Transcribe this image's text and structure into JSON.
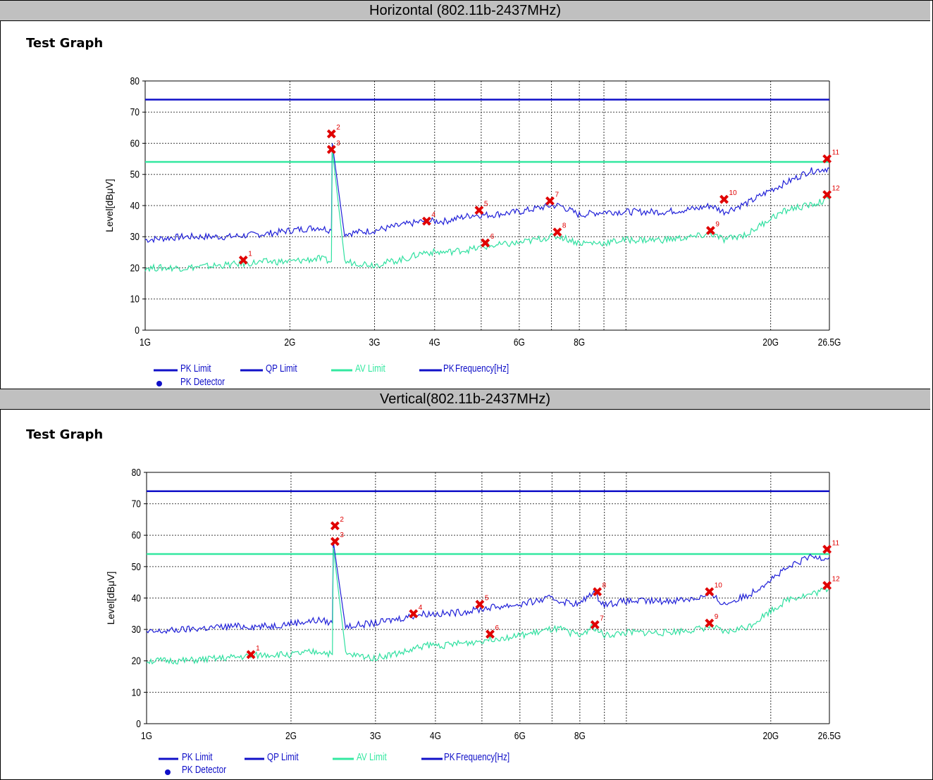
{
  "sections": [
    {
      "header": "Horizontal (802.11b-2437MHz)",
      "test_graph_label": "Test Graph"
    },
    {
      "header": "Vertical(802.11b-2437MHz)",
      "test_graph_label": "Test Graph"
    }
  ],
  "legend": {
    "pk_limit": "PK Limit",
    "qp_limit": "QP Limit",
    "av_limit": "AV Limit",
    "pk_partial": "PK",
    "frequency_label": "Frequency[Hz]",
    "pk_detector": "PK Detector"
  },
  "colors": {
    "pk_limit": "#1010c8",
    "av_limit": "#33e8a0",
    "pk_trace": "#2020d8",
    "av_trace": "#30e0a0",
    "marker": "#e00000",
    "grid": "#000000",
    "header_bg": "#c0c0c0"
  },
  "chart_data": [
    {
      "type": "line",
      "title": "Horizontal (802.11b-2437MHz)",
      "xlabel": "Frequency[Hz]",
      "ylabel": "Level[dBμV]",
      "x_scale": "log",
      "xlim": [
        1,
        26.5
      ],
      "ylim": [
        0,
        80
      ],
      "yticks": [
        0,
        10,
        20,
        30,
        40,
        50,
        60,
        70,
        80
      ],
      "xticks": [
        {
          "v": 1,
          "label": "1G"
        },
        {
          "v": 2,
          "label": "2G"
        },
        {
          "v": 3,
          "label": "3G"
        },
        {
          "v": 4,
          "label": "4G"
        },
        {
          "v": 6,
          "label": "6G"
        },
        {
          "v": 8,
          "label": "8G"
        },
        {
          "v": 20,
          "label": "20G"
        },
        {
          "v": 26.5,
          "label": "26.5G"
        }
      ],
      "grid_x": [
        2,
        3,
        4,
        5,
        6,
        7,
        8,
        9,
        10,
        20
      ],
      "limits": [
        {
          "name": "PK Limit",
          "value": 74
        },
        {
          "name": "AV Limit",
          "value": 54
        }
      ],
      "series": [
        {
          "name": "PK",
          "x": [
            1,
            1.2,
            1.5,
            1.8,
            2.0,
            2.3,
            2.44,
            2.45,
            2.6,
            3.0,
            3.5,
            3.8,
            4.2,
            4.8,
            5.2,
            6.0,
            7.0,
            7.3,
            8.0,
            9.0,
            10.0,
            12.0,
            14.0,
            15.0,
            16.0,
            18.0,
            20.0,
            22.0,
            24.0,
            26.5
          ],
          "y": [
            29,
            30,
            30,
            31,
            32,
            33,
            32,
            60,
            31,
            32,
            34,
            35,
            35,
            37,
            37,
            38,
            40,
            40,
            37,
            38,
            38,
            38,
            39,
            40,
            38,
            41,
            45,
            48,
            51,
            52
          ]
        },
        {
          "name": "AV",
          "x": [
            1,
            1.2,
            1.5,
            1.8,
            2.0,
            2.3,
            2.44,
            2.45,
            2.6,
            3.0,
            3.5,
            3.8,
            4.2,
            4.8,
            5.2,
            6.0,
            7.0,
            7.3,
            8.0,
            9.0,
            10.0,
            12.0,
            14.0,
            15.0,
            16.0,
            18.0,
            20.0,
            22.0,
            24.0,
            26.5
          ],
          "y": [
            20,
            20,
            21,
            22,
            22,
            23,
            22,
            58,
            22,
            21,
            23,
            25,
            25,
            26,
            27,
            28,
            30,
            30,
            28,
            28,
            29,
            29,
            30,
            31,
            29,
            31,
            36,
            39,
            40,
            42
          ]
        }
      ],
      "markers": [
        {
          "id": "1",
          "x": 1.6,
          "y": 22.5
        },
        {
          "id": "2",
          "x": 2.44,
          "y": 63
        },
        {
          "id": "3",
          "x": 2.44,
          "y": 58
        },
        {
          "id": "4",
          "x": 3.85,
          "y": 35
        },
        {
          "id": "5",
          "x": 4.95,
          "y": 38.5
        },
        {
          "id": "6",
          "x": 5.1,
          "y": 28
        },
        {
          "id": "7",
          "x": 6.95,
          "y": 41.5
        },
        {
          "id": "8",
          "x": 7.2,
          "y": 31.5
        },
        {
          "id": "9",
          "x": 15.0,
          "y": 32
        },
        {
          "id": "10",
          "x": 16.0,
          "y": 42
        },
        {
          "id": "11",
          "x": 26.2,
          "y": 55
        },
        {
          "id": "12",
          "x": 26.2,
          "y": 43.5
        }
      ]
    },
    {
      "type": "line",
      "title": "Vertical(802.11b-2437MHz)",
      "xlabel": "Frequency[Hz]",
      "ylabel": "Level[dBμV]",
      "x_scale": "log",
      "xlim": [
        1,
        26.5
      ],
      "ylim": [
        0,
        80
      ],
      "yticks": [
        0,
        10,
        20,
        30,
        40,
        50,
        60,
        70,
        80
      ],
      "xticks": [
        {
          "v": 1,
          "label": "1G"
        },
        {
          "v": 2,
          "label": "2G"
        },
        {
          "v": 3,
          "label": "3G"
        },
        {
          "v": 4,
          "label": "4G"
        },
        {
          "v": 6,
          "label": "6G"
        },
        {
          "v": 8,
          "label": "8G"
        },
        {
          "v": 20,
          "label": "20G"
        },
        {
          "v": 26.5,
          "label": "26.5G"
        }
      ],
      "grid_x": [
        2,
        3,
        4,
        5,
        6,
        7,
        8,
        9,
        10,
        20
      ],
      "limits": [
        {
          "name": "PK Limit",
          "value": 74
        },
        {
          "name": "AV Limit",
          "value": 54
        }
      ],
      "series": [
        {
          "name": "PK",
          "x": [
            1,
            1.2,
            1.5,
            1.8,
            2.0,
            2.3,
            2.44,
            2.45,
            2.6,
            3.0,
            3.5,
            3.8,
            4.2,
            4.8,
            5.2,
            6.0,
            7.0,
            7.3,
            8.0,
            8.5,
            9.0,
            10.0,
            12.0,
            14.0,
            15.0,
            16.0,
            18.0,
            20.0,
            22.0,
            24.0,
            26.5
          ],
          "y": [
            29,
            30,
            31,
            31,
            32,
            33,
            32,
            58,
            31,
            32,
            34,
            35,
            35,
            36,
            37,
            38,
            40,
            39,
            38,
            42,
            38,
            39,
            39,
            40,
            41,
            38,
            41,
            46,
            50,
            53,
            53
          ]
        },
        {
          "name": "AV",
          "x": [
            1,
            1.2,
            1.5,
            1.8,
            2.0,
            2.3,
            2.44,
            2.45,
            2.6,
            3.0,
            3.5,
            3.8,
            4.2,
            4.8,
            5.2,
            6.0,
            7.0,
            7.3,
            8.0,
            8.5,
            9.0,
            10.0,
            12.0,
            14.0,
            15.0,
            16.0,
            18.0,
            20.0,
            22.0,
            24.0,
            26.5
          ],
          "y": [
            20,
            20,
            21,
            22,
            22,
            23,
            22,
            56,
            22,
            21,
            23,
            25,
            25,
            26,
            27,
            28,
            30,
            30,
            28,
            31,
            28,
            29,
            29,
            30,
            31,
            29,
            31,
            36,
            40,
            41,
            43
          ]
        }
      ],
      "markers": [
        {
          "id": "1",
          "x": 1.65,
          "y": 22
        },
        {
          "id": "2",
          "x": 2.47,
          "y": 63
        },
        {
          "id": "3",
          "x": 2.47,
          "y": 58
        },
        {
          "id": "4",
          "x": 3.6,
          "y": 35
        },
        {
          "id": "5",
          "x": 4.95,
          "y": 38
        },
        {
          "id": "6",
          "x": 5.2,
          "y": 28.5
        },
        {
          "id": "7",
          "x": 8.6,
          "y": 31.5
        },
        {
          "id": "8",
          "x": 8.7,
          "y": 42
        },
        {
          "id": "9",
          "x": 14.9,
          "y": 32
        },
        {
          "id": "10",
          "x": 14.9,
          "y": 42
        },
        {
          "id": "11",
          "x": 26.2,
          "y": 55.5
        },
        {
          "id": "12",
          "x": 26.2,
          "y": 44
        }
      ]
    }
  ]
}
